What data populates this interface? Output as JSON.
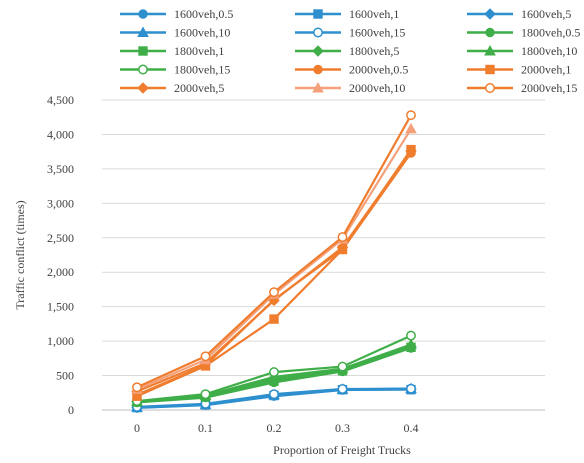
{
  "chart_data": {
    "type": "line",
    "title": "",
    "xlabel": "Proportion of Freight Trucks",
    "ylabel": "Traffic conflict (times)",
    "x": [
      0,
      0.1,
      0.2,
      0.3,
      0.4
    ],
    "x_tick_labels": [
      "0",
      "0.1",
      "0.2",
      "0.3",
      "0.4"
    ],
    "ylim": [
      0,
      4500
    ],
    "y_ticks": [
      0,
      500,
      1000,
      1500,
      2000,
      2500,
      3000,
      3500,
      4000,
      4500
    ],
    "y_tick_labels": [
      "0",
      "500",
      "1,000",
      "1,500",
      "2,000",
      "2,500",
      "3,000",
      "3,500",
      "4,000",
      "4,500"
    ],
    "grid": "horizontal",
    "legend_position": "top",
    "series": [
      {
        "name": "1600veh,0.5",
        "color": "#2e8fcf",
        "marker": "circle-filled",
        "values": [
          30,
          70,
          200,
          290,
          300
        ]
      },
      {
        "name": "1600veh,1",
        "color": "#2e8fcf",
        "marker": "square-filled",
        "values": [
          35,
          75,
          210,
          295,
          295
        ]
      },
      {
        "name": "1600veh,5",
        "color": "#2e8fcf",
        "marker": "diamond-filled",
        "values": [
          38,
          80,
          215,
          300,
          305
        ]
      },
      {
        "name": "1600veh,10",
        "color": "#2e8fcf",
        "marker": "triangle-filled",
        "values": [
          40,
          82,
          220,
          300,
          310
        ]
      },
      {
        "name": "1600veh,15",
        "color": "#2e8fcf",
        "marker": "circle-open",
        "values": [
          45,
          90,
          230,
          305,
          310
        ]
      },
      {
        "name": "1800veh,0.5",
        "color": "#3fae49",
        "marker": "circle-filled",
        "values": [
          110,
          180,
          400,
          560,
          900
        ]
      },
      {
        "name": "1800veh,1",
        "color": "#3fae49",
        "marker": "square-filled",
        "values": [
          115,
          190,
          420,
          570,
          910
        ]
      },
      {
        "name": "1800veh,5",
        "color": "#3fae49",
        "marker": "diamond-filled",
        "values": [
          120,
          200,
          450,
          580,
          920
        ]
      },
      {
        "name": "1800veh,10",
        "color": "#3fae49",
        "marker": "triangle-filled",
        "values": [
          125,
          210,
          480,
          600,
          950
        ]
      },
      {
        "name": "1800veh,15",
        "color": "#3fae49",
        "marker": "circle-open",
        "values": [
          130,
          230,
          550,
          630,
          1080
        ]
      },
      {
        "name": "2000veh,0.5",
        "color": "#f07c2e",
        "marker": "circle-filled",
        "values": [
          220,
          650,
          1600,
          2330,
          3730
        ]
      },
      {
        "name": "2000veh,1",
        "color": "#f07c2e",
        "marker": "square-filled",
        "values": [
          200,
          640,
          1320,
          2330,
          3780
        ]
      },
      {
        "name": "2000veh,5",
        "color": "#f07c2e",
        "marker": "diamond-filled",
        "values": [
          270,
          680,
          1590,
          2360,
          3760
        ]
      },
      {
        "name": "2000veh,10",
        "color": "#f4a07a",
        "marker": "triangle-filled",
        "values": [
          300,
          730,
          1680,
          2480,
          4080
        ]
      },
      {
        "name": "2000veh,15",
        "color": "#f07c2e",
        "marker": "circle-open",
        "values": [
          330,
          780,
          1710,
          2510,
          4280
        ]
      }
    ]
  }
}
